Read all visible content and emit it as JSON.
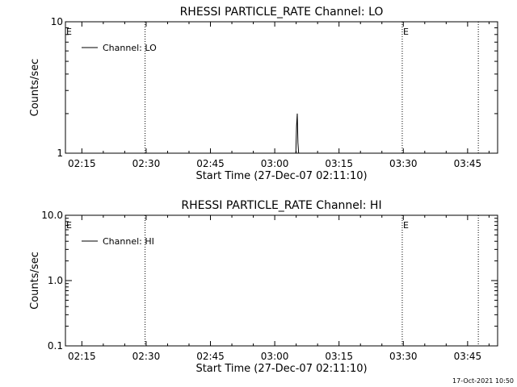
{
  "footer_timestamp": "17-Oct-2021 10:50",
  "chart_data": [
    {
      "type": "line",
      "title": "RHESSI PARTICLE_RATE Channel: LO",
      "xlabel": "Start Time (27-Dec-07 02:11:10)",
      "ylabel": "Counts/sec",
      "yscale": "log",
      "ylim": [
        1,
        10
      ],
      "xlim": [
        "02:11:10",
        "03:52:00"
      ],
      "x_ticks": [
        "02:15",
        "02:30",
        "02:45",
        "03:00",
        "03:15",
        "03:30",
        "03:45"
      ],
      "y_ticks": [
        "1",
        "10"
      ],
      "legend": {
        "placement": "top-left",
        "entries": [
          "Channel: LO"
        ]
      },
      "event_lines": [
        {
          "time": "02:29:45",
          "label": ""
        },
        {
          "time": "03:29:45",
          "label": "E"
        },
        {
          "time": "03:47:30",
          "label": ""
        }
      ],
      "edge_labels": [
        {
          "label": "E",
          "position": "left"
        }
      ],
      "series": [
        {
          "name": "Channel: LO",
          "x": [
            "03:04:55",
            "03:05:05",
            "03:05:15",
            "03:05:25",
            "03:05:35"
          ],
          "y": [
            1,
            1.6,
            2.0,
            1.2,
            1
          ]
        }
      ]
    },
    {
      "type": "line",
      "title": "RHESSI PARTICLE_RATE Channel: HI",
      "xlabel": "Start Time (27-Dec-07 02:11:10)",
      "ylabel": "Counts/sec",
      "yscale": "log",
      "ylim": [
        0.1,
        10
      ],
      "xlim": [
        "02:11:10",
        "03:52:00"
      ],
      "x_ticks": [
        "02:15",
        "02:30",
        "02:45",
        "03:00",
        "03:15",
        "03:30",
        "03:45"
      ],
      "y_ticks": [
        "0.1",
        "1.0",
        "10.0"
      ],
      "legend": {
        "placement": "top-left",
        "entries": [
          "Channel: HI"
        ]
      },
      "event_lines": [
        {
          "time": "02:29:45",
          "label": ""
        },
        {
          "time": "03:29:45",
          "label": "E"
        },
        {
          "time": "03:47:30",
          "label": ""
        }
      ],
      "edge_labels": [
        {
          "label": "E",
          "position": "left"
        }
      ],
      "series": [
        {
          "name": "Channel: HI",
          "x": [],
          "y": []
        }
      ]
    }
  ]
}
